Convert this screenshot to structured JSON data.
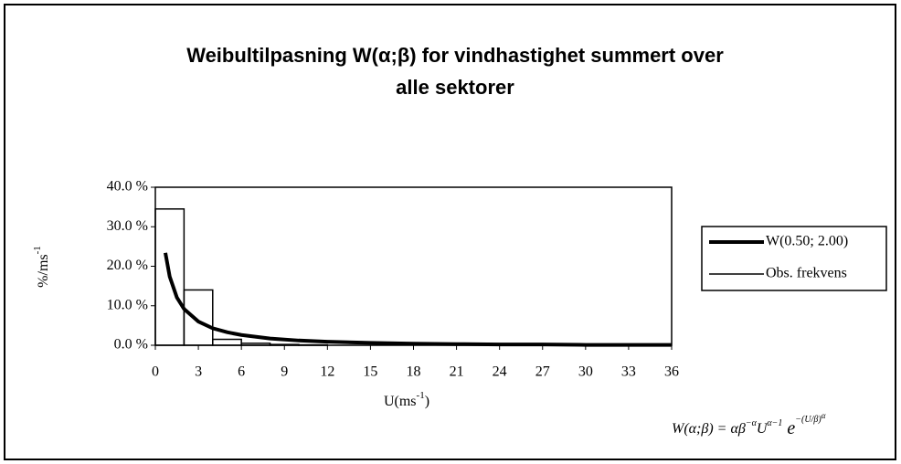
{
  "chart_data": {
    "type": "line",
    "title": [
      "Weibultilpasning W(α;β) for vindhastighet summert over",
      "alle sektorer"
    ],
    "x_label": [
      "U(ms",
      "-1",
      ")"
    ],
    "y_label": [
      "%/ms",
      "-1"
    ],
    "formula": [
      "W(α;β) = αβ",
      "−α",
      "U",
      "α−1",
      " e",
      "−(U/β)",
      "α"
    ],
    "xlim": [
      0,
      36
    ],
    "xticks": [
      0,
      3,
      6,
      9,
      12,
      15,
      18,
      21,
      24,
      27,
      30,
      33,
      36
    ],
    "ylim": [
      0,
      40
    ],
    "yticks": [
      {
        "value": 0,
        "label": "0.0 %"
      },
      {
        "value": 10,
        "label": "10.0 %"
      },
      {
        "value": 20,
        "label": "20.0 %"
      },
      {
        "value": 30,
        "label": "30.0 %"
      },
      {
        "value": 40,
        "label": "40.0 %"
      }
    ],
    "legend": "right",
    "series": [
      {
        "name": "W(0.50; 2.00)",
        "type": "line",
        "color": "#000000",
        "x": [
          0.7,
          1,
          1.5,
          2,
          3,
          4,
          5,
          6,
          8,
          10,
          12,
          15,
          18,
          21,
          24,
          27,
          30,
          33,
          36
        ],
        "values": [
          23.4,
          17.4,
          12.1,
          9.2,
          6.0,
          4.3,
          3.3,
          2.6,
          1.7,
          1.2,
          0.9,
          0.6,
          0.4,
          0.3,
          0.2,
          0.2,
          0.1,
          0.1,
          0.1
        ]
      },
      {
        "name": "Obs. frekvens",
        "type": "histogram",
        "color": "#000000",
        "bins": [
          0,
          2,
          4,
          6,
          8,
          10,
          12,
          14,
          16,
          18,
          20,
          22,
          24,
          26,
          28,
          30,
          32,
          34,
          36
        ],
        "values": [
          34.5,
          14,
          1.5,
          0.5,
          0.2,
          0.1,
          0,
          0,
          0,
          0,
          0,
          0,
          0,
          0,
          0,
          0,
          0,
          0
        ]
      }
    ]
  }
}
